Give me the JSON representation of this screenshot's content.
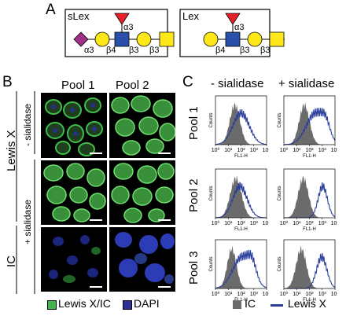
{
  "figure": {
    "panel_letters": {
      "a": "A",
      "b": "B",
      "c": "C"
    },
    "panel_a": {
      "structures": [
        {
          "name": "sLex",
          "linkages": [
            "α3",
            "β4",
            "β3",
            "α3"
          ]
        },
        {
          "name": "Lex",
          "linkages": [
            "β4",
            "β3",
            "α3"
          ]
        }
      ],
      "colors": {
        "fucose": "#e8202a",
        "sialic": "#a0308a",
        "galactose": "#ffe81a",
        "glcnac": "#2a4fa8"
      }
    },
    "panel_b": {
      "col_headers": [
        "Pool 1",
        "Pool 2"
      ],
      "row_groups": [
        "Lewis X",
        "IC"
      ],
      "treatments": [
        "- sialidase",
        "+ sialidase"
      ],
      "legend": [
        {
          "label": "Lewis X/IC",
          "color": "#3fb54a"
        },
        {
          "label": "DAPI",
          "color": "#2a2f9c"
        }
      ]
    },
    "panel_c": {
      "col_headers": [
        "- sialidase",
        "+ sialidase"
      ],
      "row_headers": [
        "Pool 1",
        "Pool 2",
        "Pool 3"
      ],
      "y_label": "Counts",
      "x_label": "FL1-H",
      "x_ticks": [
        "10⁰",
        "10¹",
        "10²",
        "10³",
        "10⁴"
      ],
      "legend": [
        {
          "label": "IC",
          "color": "#6b6b6b"
        },
        {
          "label": "Lewis X",
          "color": "#2a3f9c"
        }
      ]
    }
  }
}
